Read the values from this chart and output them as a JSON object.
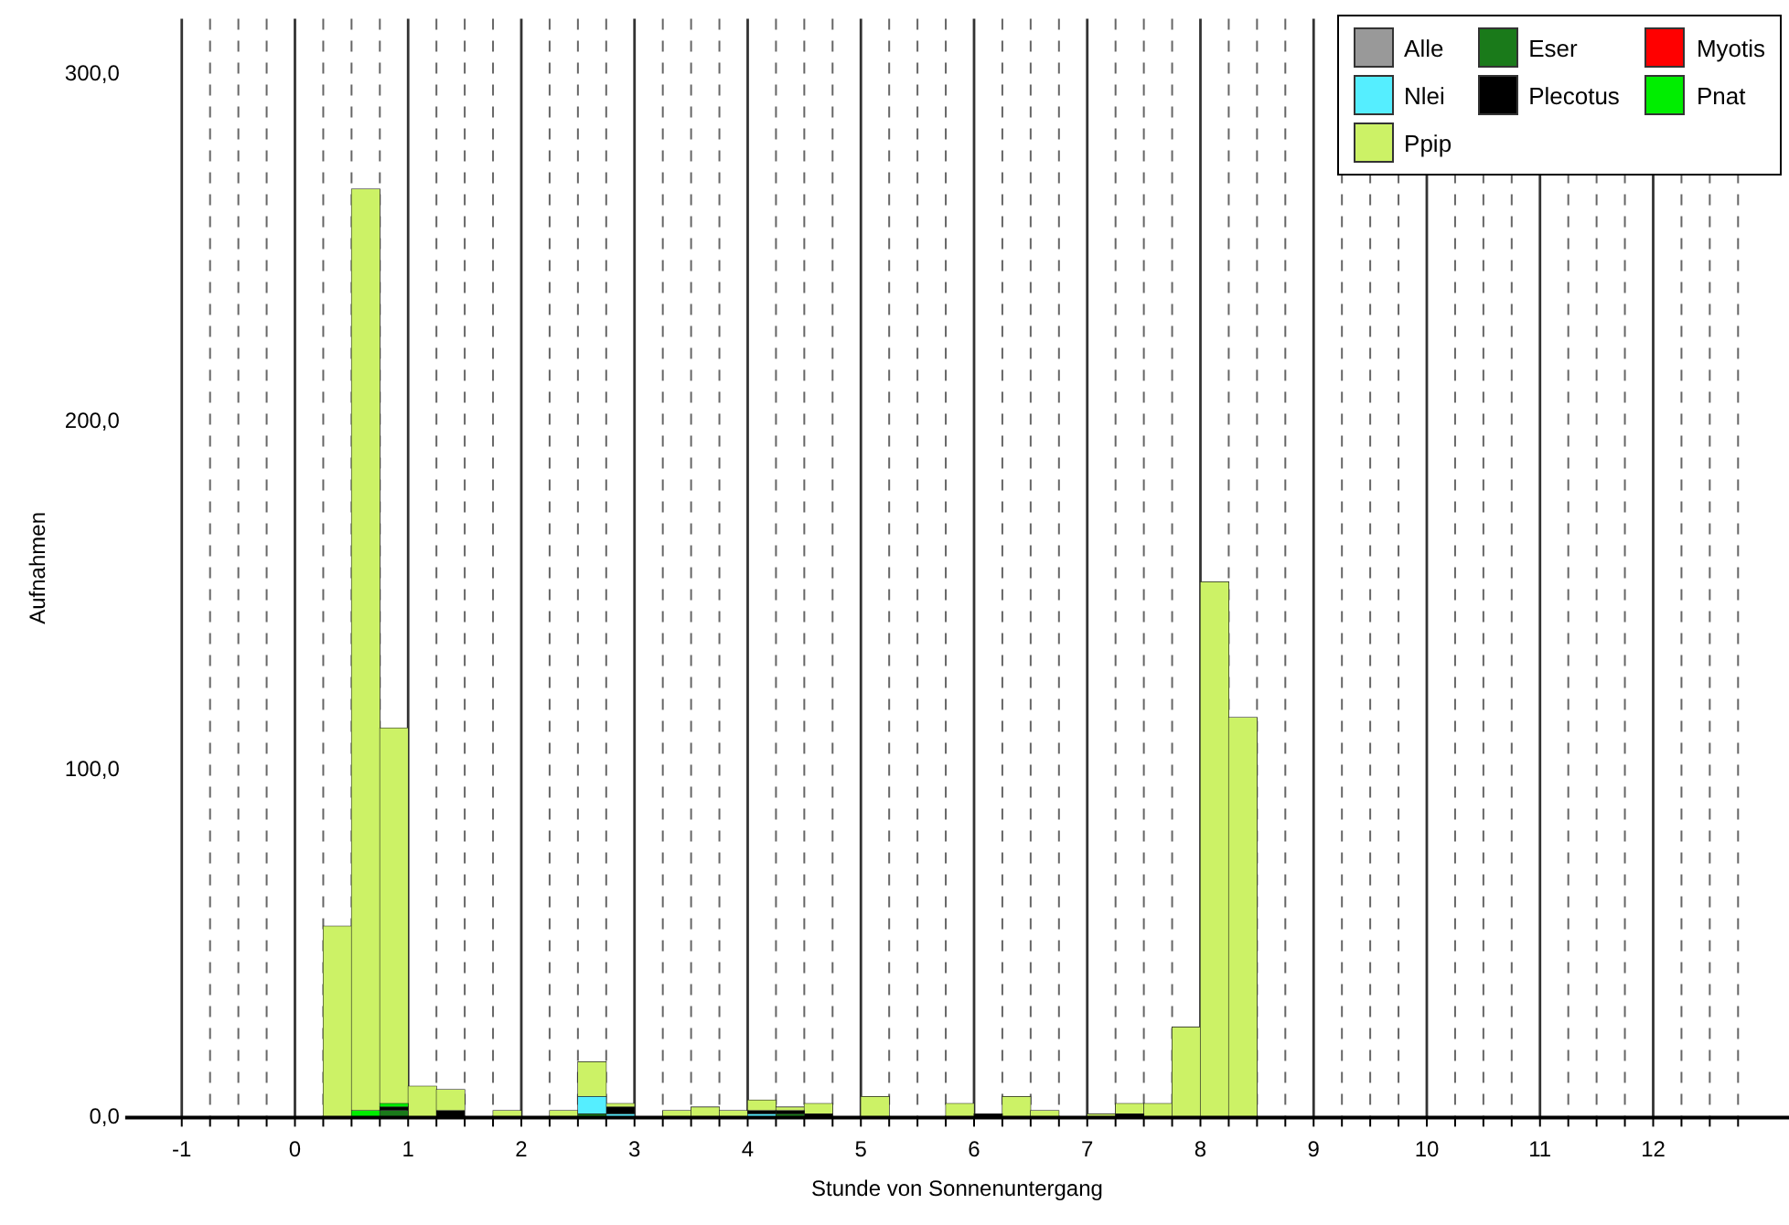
{
  "chart_data": {
    "type": "bar",
    "stacked": true,
    "xlabel": "Stunde von Sonnenuntergang",
    "ylabel": "Aufnahmen",
    "x": [
      0.375,
      0.625,
      0.875,
      1.125,
      1.375,
      1.625,
      1.875,
      2.125,
      2.375,
      2.625,
      2.875,
      3.125,
      3.375,
      3.625,
      3.875,
      4.125,
      4.375,
      4.625,
      4.875,
      5.125,
      5.375,
      5.625,
      5.875,
      6.125,
      6.375,
      6.625,
      6.875,
      7.125,
      7.375,
      7.625,
      7.875,
      8.125,
      8.375
    ],
    "series": [
      {
        "name": "Alle",
        "color": "#999999",
        "values": [
          null,
          null,
          null,
          null,
          null,
          null,
          null,
          null,
          null,
          null,
          null,
          null,
          null,
          null,
          null,
          null,
          null,
          null,
          null,
          null,
          null,
          null,
          null,
          null,
          null,
          null,
          null,
          null,
          null,
          null,
          null,
          null,
          null
        ]
      },
      {
        "name": "Eser",
        "color": "#1a7a1a",
        "values": [
          null,
          null,
          2,
          null,
          null,
          null,
          null,
          null,
          null,
          1,
          null,
          null,
          null,
          null,
          null,
          null,
          1,
          null,
          null,
          null,
          null,
          null,
          null,
          null,
          null,
          null,
          null,
          null,
          null,
          null,
          null,
          null,
          null
        ]
      },
      {
        "name": "Myotis",
        "color": "#ff0000",
        "values": [
          null,
          null,
          null,
          null,
          null,
          null,
          null,
          null,
          null,
          null,
          null,
          null,
          null,
          null,
          null,
          null,
          null,
          null,
          null,
          null,
          null,
          null,
          null,
          null,
          null,
          null,
          null,
          null,
          null,
          null,
          null,
          null,
          null
        ]
      },
      {
        "name": "Nlei",
        "color": "#55eeff",
        "values": [
          null,
          null,
          null,
          null,
          null,
          null,
          null,
          null,
          null,
          5,
          1,
          null,
          null,
          null,
          null,
          1,
          null,
          null,
          null,
          null,
          null,
          null,
          null,
          null,
          null,
          null,
          null,
          null,
          null,
          null,
          null,
          null,
          null
        ]
      },
      {
        "name": "Plecotus",
        "color": "#000000",
        "values": [
          null,
          null,
          1,
          null,
          2,
          null,
          null,
          null,
          null,
          null,
          2,
          null,
          null,
          null,
          null,
          1,
          1,
          1,
          null,
          null,
          null,
          null,
          null,
          1,
          null,
          null,
          null,
          null,
          1,
          null,
          null,
          null,
          null
        ]
      },
      {
        "name": "Pnat",
        "color": "#00ee00",
        "values": [
          null,
          2,
          1,
          null,
          null,
          null,
          null,
          null,
          null,
          null,
          null,
          null,
          null,
          null,
          null,
          null,
          null,
          null,
          null,
          null,
          null,
          null,
          null,
          null,
          null,
          null,
          null,
          null,
          null,
          null,
          null,
          null,
          null
        ]
      },
      {
        "name": "Ppip",
        "color": "#ccf266",
        "values": [
          55,
          265,
          108,
          9,
          6,
          null,
          2,
          null,
          2,
          10,
          1,
          null,
          2,
          3,
          2,
          3,
          1,
          3,
          null,
          6,
          null,
          null,
          4,
          null,
          6,
          2,
          null,
          1,
          3,
          4,
          26,
          154,
          115
        ]
      }
    ],
    "xlim": [
      -1.5,
      13.2
    ],
    "xticks": [
      -1,
      {
        "value": -0.75,
        "label": null
      },
      {
        "value": -0.5,
        "label": null
      },
      {
        "value": -0.25,
        "label": null
      },
      0,
      {
        "value": 0.25,
        "label": null
      },
      {
        "value": 0.5,
        "label": null
      },
      {
        "value": 0.75,
        "label": null
      },
      1,
      {
        "value": 1.25,
        "label": null
      },
      {
        "value": 1.5,
        "label": null
      },
      {
        "value": 1.75,
        "label": null
      },
      2,
      {
        "value": 2.25,
        "label": null
      },
      {
        "value": 2.5,
        "label": null
      },
      {
        "value": 2.75,
        "label": null
      },
      3,
      {
        "value": 3.25,
        "label": null
      },
      {
        "value": 3.5,
        "label": null
      },
      {
        "value": 3.75,
        "label": null
      },
      4,
      {
        "value": 4.25,
        "label": null
      },
      {
        "value": 4.5,
        "label": null
      },
      {
        "value": 4.75,
        "label": null
      },
      5,
      {
        "value": 5.25,
        "label": null
      },
      {
        "value": 5.5,
        "label": null
      },
      {
        "value": 5.75,
        "label": null
      },
      6,
      {
        "value": 6.25,
        "label": null
      },
      {
        "value": 6.5,
        "label": null
      },
      {
        "value": 6.75,
        "label": null
      },
      7,
      {
        "value": 7.25,
        "label": null
      },
      {
        "value": 7.5,
        "label": null
      },
      {
        "value": 7.75,
        "label": null
      },
      8,
      {
        "value": 8.25,
        "label": null
      },
      {
        "value": 8.5,
        "label": null
      },
      {
        "value": 8.75,
        "label": null
      },
      9,
      {
        "value": 9.25,
        "label": null
      },
      {
        "value": 9.5,
        "label": null
      },
      {
        "value": 9.75,
        "label": null
      },
      10,
      {
        "value": 10.25,
        "label": null
      },
      {
        "value": 10.5,
        "label": null
      },
      {
        "value": 10.75,
        "label": null
      },
      11,
      {
        "value": 11.25,
        "label": null
      },
      {
        "value": 11.5,
        "label": null
      },
      {
        "value": 11.75,
        "label": null
      },
      12,
      {
        "value": 12.25,
        "label": null
      },
      {
        "value": 12.5,
        "label": null
      },
      {
        "value": 12.75,
        "label": null
      }
    ],
    "ylim": [
      0,
      316
    ],
    "yticks": [
      {
        "value": 0,
        "label": "0,0"
      },
      {
        "value": 100,
        "label": "100,0"
      },
      {
        "value": 200,
        "label": "200,0"
      },
      {
        "value": 300,
        "label": "300,0"
      }
    ],
    "grid": "x",
    "legend": "top right"
  }
}
